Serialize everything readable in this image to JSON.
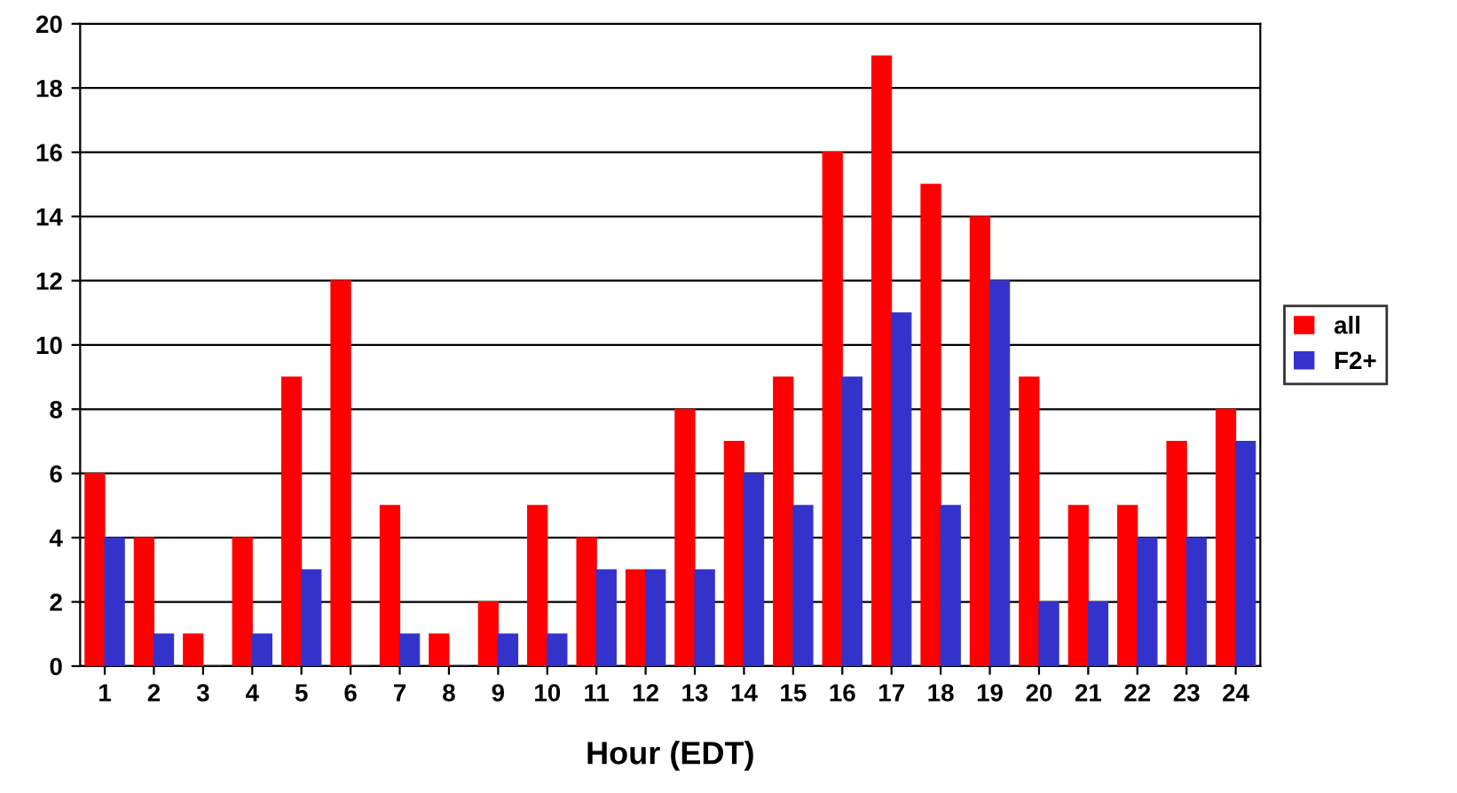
{
  "chart_data": {
    "type": "bar",
    "xlabel": "Hour (EDT)",
    "categories": [
      "1",
      "2",
      "3",
      "4",
      "5",
      "6",
      "7",
      "8",
      "9",
      "10",
      "11",
      "12",
      "13",
      "14",
      "15",
      "16",
      "17",
      "18",
      "19",
      "20",
      "21",
      "22",
      "23",
      "24"
    ],
    "series": [
      {
        "name": "all",
        "color": "#ff0000",
        "values": [
          6,
          4,
          1,
          4,
          9,
          12,
          5,
          1,
          2,
          5,
          4,
          3,
          8,
          7,
          9,
          16,
          19,
          15,
          14,
          9,
          5,
          5,
          7,
          8
        ]
      },
      {
        "name": "F2+",
        "color": "#3333cc",
        "values": [
          4,
          1,
          0,
          1,
          3,
          0,
          1,
          0,
          1,
          1,
          3,
          3,
          3,
          6,
          5,
          9,
          11,
          5,
          12,
          2,
          2,
          4,
          4,
          7
        ]
      }
    ],
    "ylim": [
      0,
      20
    ],
    "yticks": [
      0,
      2,
      4,
      6,
      8,
      10,
      12,
      14,
      16,
      18,
      20
    ],
    "grid": "y",
    "legend": "right"
  }
}
